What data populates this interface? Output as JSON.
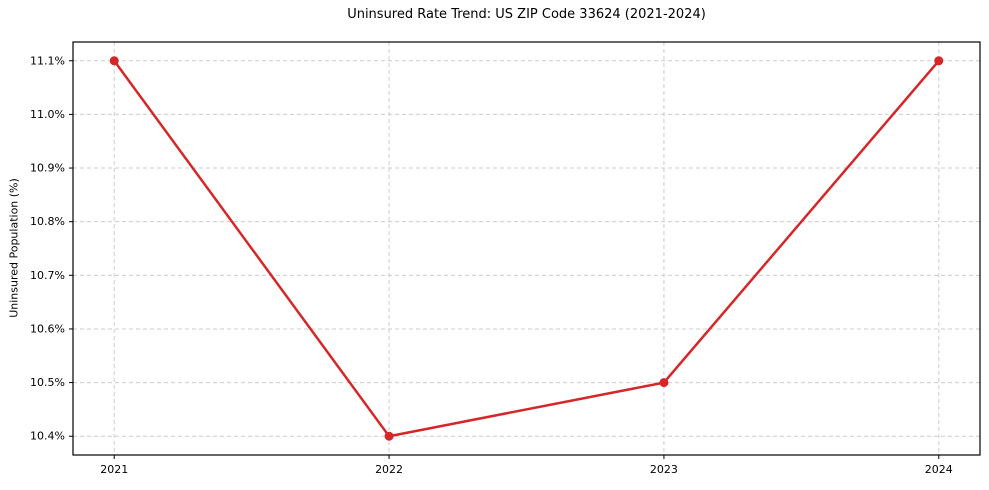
{
  "chart_data": {
    "type": "line",
    "title": "Uninsured Rate Trend: US ZIP Code 33624 (2021-2024)",
    "xlabel": "",
    "ylabel": "Uninsured Population (%)",
    "x": [
      2021,
      2022,
      2023,
      2024
    ],
    "values": [
      11.1,
      10.4,
      10.5,
      11.1
    ],
    "xticks": {
      "values": [
        2021,
        2022,
        2023,
        2024
      ],
      "labels": [
        "2021",
        "2022",
        "2023",
        "2024"
      ]
    },
    "yticks": {
      "values": [
        10.4,
        10.5,
        10.6,
        10.7,
        10.8,
        10.9,
        11.0,
        11.1
      ],
      "labels": [
        "10.4%",
        "10.5%",
        "10.6%",
        "10.7%",
        "10.8%",
        "10.9%",
        "11.0%",
        "11.1%"
      ]
    },
    "xlim": [
      2020.85,
      2024.15
    ],
    "ylim": [
      10.365,
      11.135
    ],
    "grid": true,
    "legend": "none",
    "colors": {
      "line": "#d62728",
      "marker": "#d62728",
      "grid": "#cccccc",
      "spine": "#000000",
      "text": "#000000",
      "background": "#ffffff"
    }
  }
}
